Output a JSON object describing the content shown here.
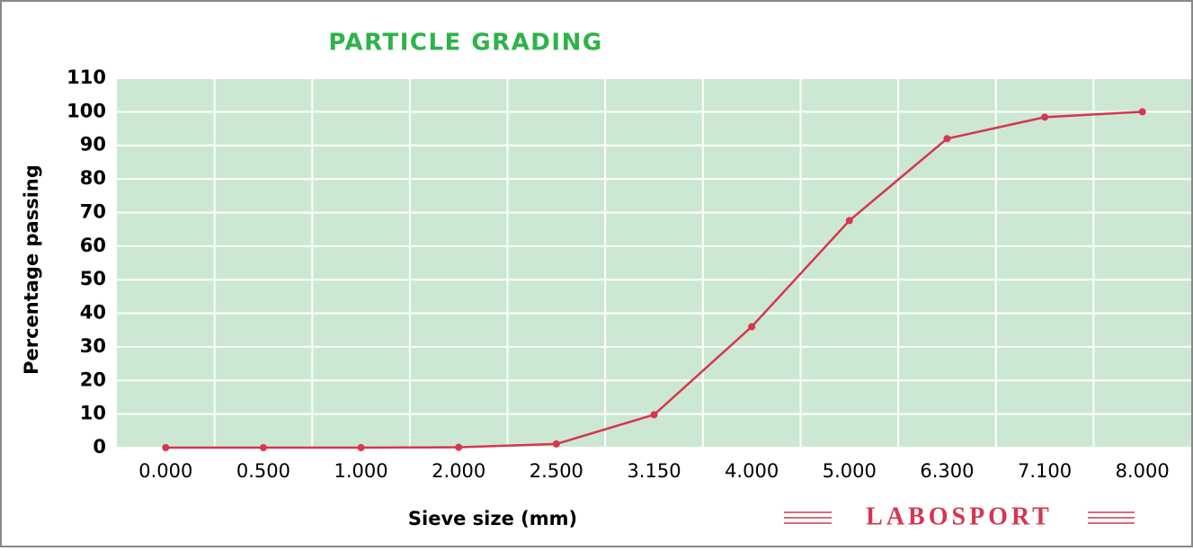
{
  "chart_data": {
    "type": "line",
    "title": "PARTICLE GRADING",
    "x_label": "Sieve size (mm)",
    "y_label": "Percentage passing",
    "logo": "LABOSPORT",
    "categories": [
      "0.000",
      "0.500",
      "1.000",
      "2.000",
      "2.500",
      "3.150",
      "4.000",
      "5.000",
      "6.300",
      "7.100",
      "8.000"
    ],
    "series": [
      {
        "name": "Percentage passing",
        "color": "#d6364f",
        "values": [
          0,
          0,
          0,
          0.1,
          1.1,
          9.8,
          36,
          67.6,
          92,
          98.4,
          100
        ]
      }
    ],
    "ylim": [
      0,
      110
    ],
    "yticks": [
      0,
      10,
      20,
      30,
      40,
      50,
      60,
      70,
      80,
      90,
      100,
      110
    ],
    "grid": true,
    "plot_background": "#cce8d3",
    "title_color": "#2db34a"
  }
}
